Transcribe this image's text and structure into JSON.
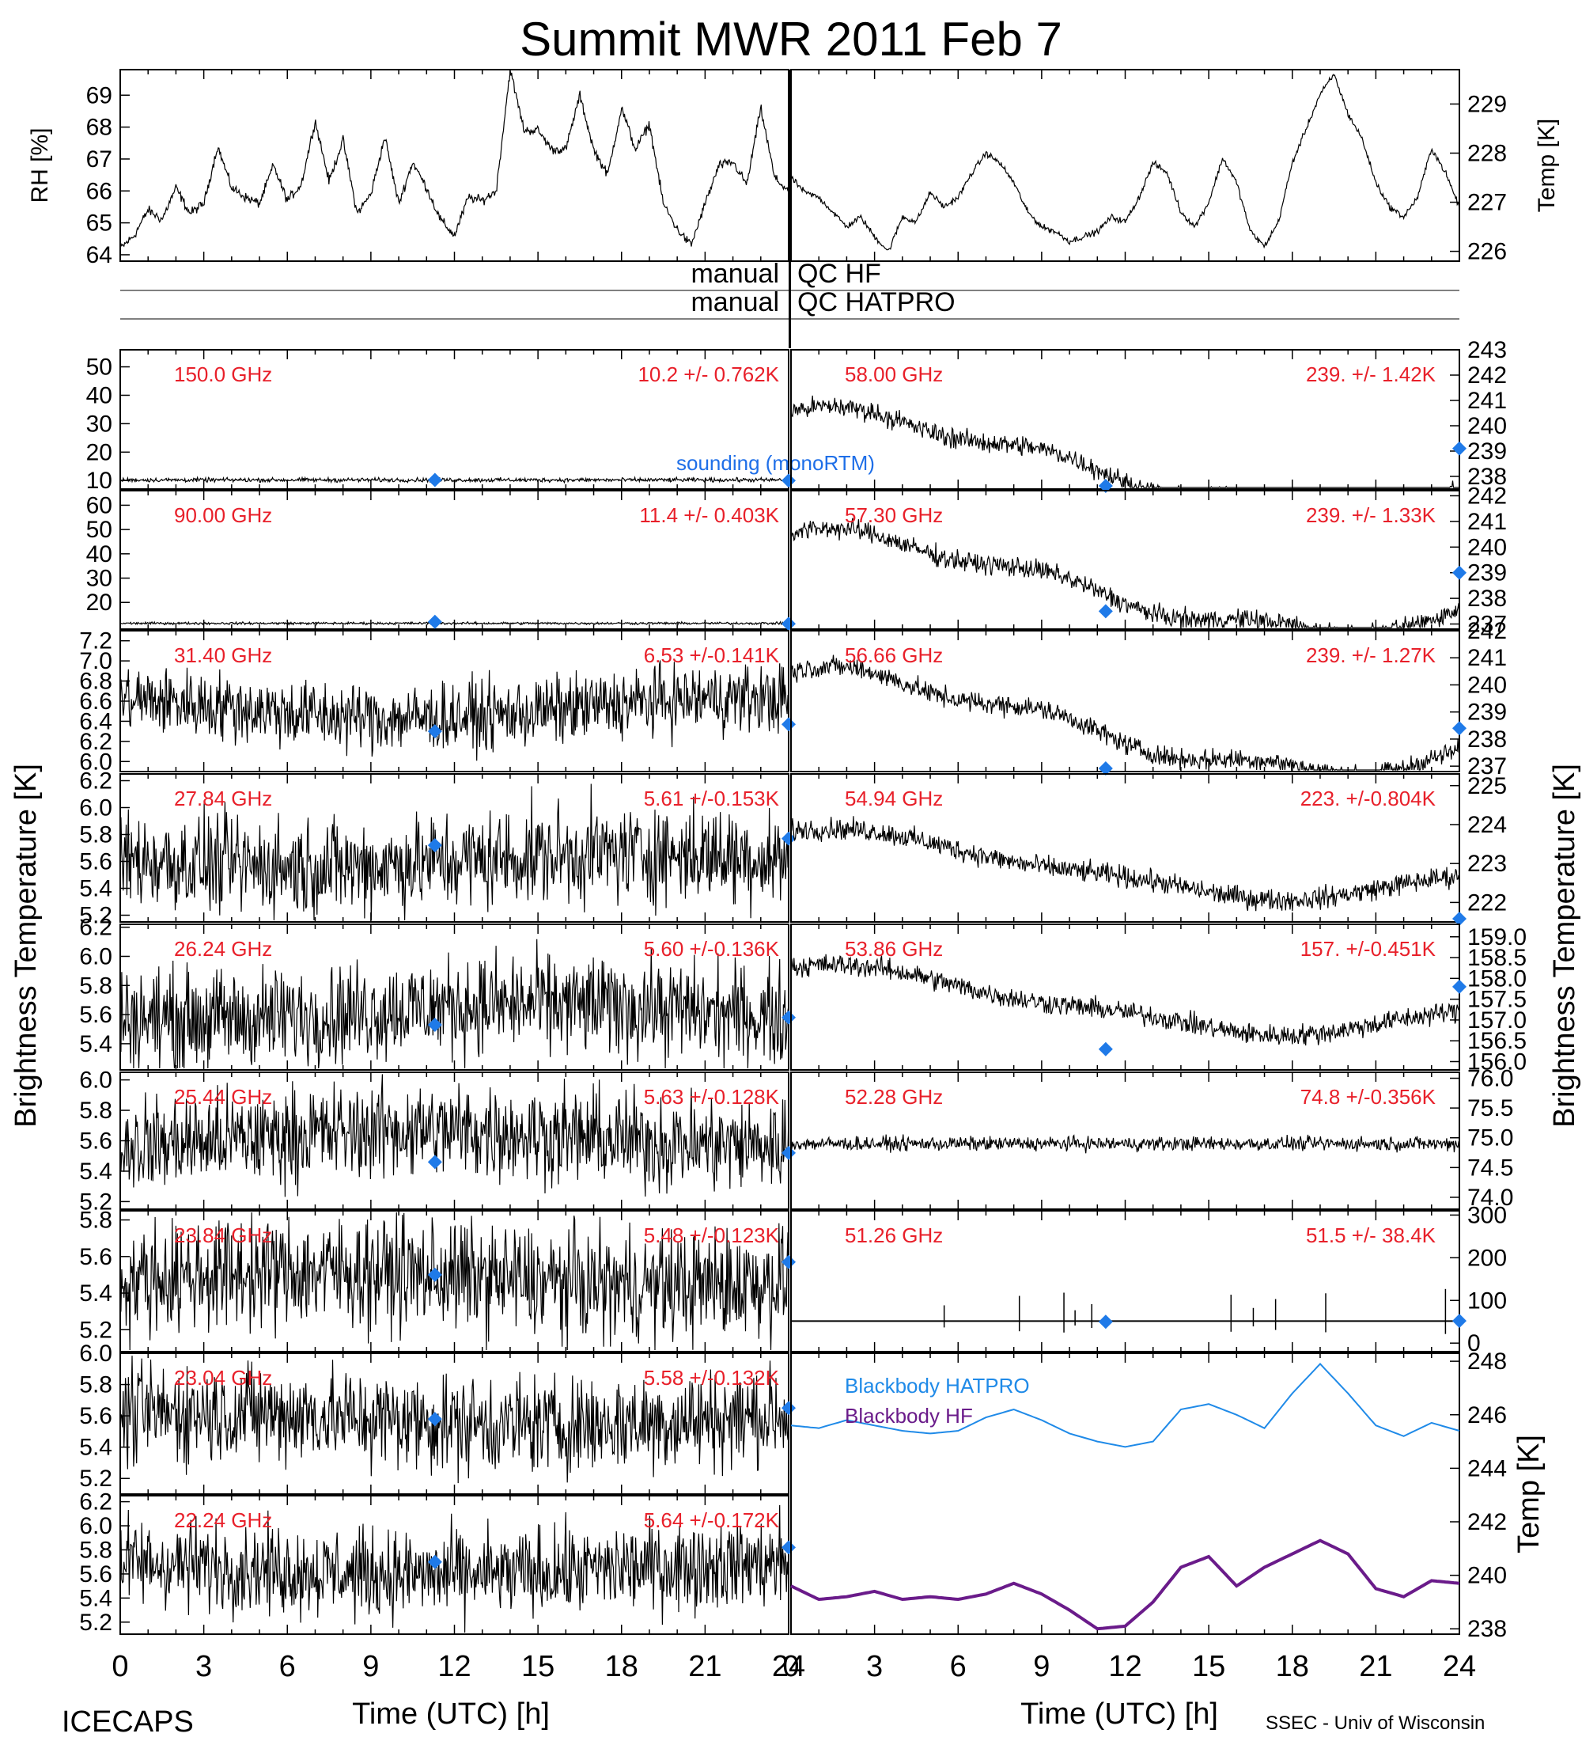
{
  "chart_data": {
    "type": "line",
    "title": "Summit MWR 2011 Feb  7",
    "x_ticks": [
      "0",
      "3",
      "6",
      "9",
      "12",
      "15",
      "18",
      "21",
      "24"
    ],
    "xlabel": "Time (UTC) [h]",
    "footer_left": "ICECAPS",
    "footer_right": "SSEC - Univ of Wisconsin",
    "qc_rows": [
      {
        "left": "manual",
        "right": "QC HF"
      },
      {
        "left": "manual",
        "right": "QC HATPRO"
      }
    ],
    "met": {
      "left": {
        "ylabel": "RH [%]",
        "ylim": [
          63.8,
          69.8
        ],
        "yticks": [
          64,
          65,
          66,
          67,
          68,
          69
        ],
        "x": [
          0,
          0.5,
          1,
          1.5,
          2,
          2.5,
          3,
          3.5,
          4,
          4.5,
          5,
          5.5,
          6,
          6.5,
          7,
          7.5,
          8,
          8.5,
          9,
          9.5,
          10,
          10.5,
          11,
          11.5,
          12,
          12.5,
          13,
          13.5,
          14,
          14.5,
          15,
          15.5,
          16,
          16.5,
          17,
          17.5,
          18,
          18.5,
          19,
          19.5,
          20,
          20.5,
          21,
          21.5,
          22,
          22.5,
          23,
          23.5,
          24
        ],
        "values": [
          64.2,
          64.6,
          65.4,
          65.1,
          66.1,
          65.3,
          65.6,
          67.4,
          66.1,
          65.8,
          65.6,
          66.8,
          65.7,
          66.2,
          68.2,
          66.3,
          67.6,
          65.3,
          65.9,
          67.7,
          65.6,
          66.9,
          66.1,
          65.1,
          64.6,
          65.8,
          65.7,
          66.0,
          69.8,
          67.9,
          67.9,
          67.3,
          67.3,
          69.0,
          67.3,
          66.5,
          68.6,
          67.3,
          68.1,
          65.6,
          64.8,
          64.3,
          65.6,
          66.8,
          66.9,
          66.2,
          68.6,
          66.4,
          66.0
        ]
      },
      "right": {
        "ylabel": "Temp [K]",
        "ylim": [
          225.8,
          229.7
        ],
        "yticks": [
          226,
          227,
          228,
          229
        ],
        "x": [
          0,
          0.5,
          1,
          1.5,
          2,
          2.5,
          3,
          3.5,
          4,
          4.5,
          5,
          5.5,
          6,
          6.5,
          7,
          7.5,
          8,
          8.5,
          9,
          9.5,
          10,
          10.5,
          11,
          11.5,
          12,
          12.5,
          13,
          13.5,
          14,
          14.5,
          15,
          15.5,
          16,
          16.5,
          17,
          17.5,
          18,
          18.5,
          19,
          19.5,
          20,
          20.5,
          21,
          21.5,
          22,
          22.5,
          23,
          23.5,
          24
        ],
        "values": [
          227.5,
          227.2,
          227.1,
          226.8,
          226.5,
          226.7,
          226.3,
          226.0,
          226.7,
          226.6,
          227.2,
          226.9,
          227.1,
          227.6,
          228.0,
          227.8,
          227.4,
          226.8,
          226.5,
          226.4,
          226.2,
          226.3,
          226.4,
          226.7,
          226.6,
          227.1,
          227.8,
          227.6,
          226.8,
          226.5,
          227.0,
          227.9,
          227.4,
          226.4,
          226.1,
          226.6,
          227.8,
          228.5,
          229.2,
          229.6,
          228.8,
          228.3,
          227.4,
          226.9,
          226.7,
          227.1,
          228.1,
          227.6,
          226.9
        ]
      }
    },
    "panels_left": [
      {
        "freq": "150.0 GHz",
        "stat": "10.2 +/- 0.762K",
        "ylim": [
          7,
          56
        ],
        "yticks": [
          10,
          20,
          30,
          40,
          50
        ],
        "base": 10.2,
        "noise": 0.6,
        "drift": 0,
        "sounding": [
          [
            11.3,
            10.2
          ],
          [
            24,
            10.0
          ]
        ],
        "note": "sounding (monoRTM)"
      },
      {
        "freq": "90.00 GHz",
        "stat": "11.4 +/- 0.403K",
        "ylim": [
          9,
          66
        ],
        "yticks": [
          20,
          30,
          40,
          50,
          60
        ],
        "base": 11.4,
        "noise": 0.4,
        "drift": 0,
        "sounding": [
          [
            11.3,
            12.0
          ],
          [
            24,
            11.2
          ]
        ]
      },
      {
        "freq": "31.40 GHz",
        "stat": "6.53 +/-0.141K",
        "ylim": [
          5.9,
          7.3
        ],
        "yticks": [
          6.0,
          6.2,
          6.4,
          6.6,
          6.8,
          7.0,
          7.2
        ],
        "tick_labels": [
          "6.0",
          "6.2",
          "6.4",
          "6.6",
          "6.8",
          "7.0",
          "7.2"
        ],
        "base": 6.53,
        "noise": 0.28,
        "drift": 0.1,
        "sounding": [
          [
            11.3,
            6.3
          ],
          [
            24,
            6.37
          ]
        ]
      },
      {
        "freq": "27.84 GHz",
        "stat": "5.61 +/-0.153K",
        "ylim": [
          5.15,
          6.25
        ],
        "yticks": [
          5.2,
          5.4,
          5.6,
          5.8,
          6.0,
          6.2
        ],
        "tick_labels": [
          "5.2",
          "5.4",
          "5.6",
          "5.8",
          "6.0",
          "6.2"
        ],
        "base": 5.61,
        "noise": 0.3,
        "drift": 0.05,
        "sounding": [
          [
            11.3,
            5.72
          ],
          [
            24,
            5.77
          ]
        ]
      },
      {
        "freq": "26.24 GHz",
        "stat": "5.60 +/-0.136K",
        "ylim": [
          5.22,
          6.22
        ],
        "yticks": [
          5.4,
          5.6,
          5.8,
          6.0,
          6.2
        ],
        "tick_labels": [
          "5.4",
          "5.6",
          "5.8",
          "6.0",
          "6.2"
        ],
        "base": 5.62,
        "noise": 0.28,
        "drift": 0.05,
        "sounding": [
          [
            11.3,
            5.53
          ],
          [
            24,
            5.58
          ]
        ]
      },
      {
        "freq": "25.44 GHz",
        "stat": "5.63 +/-0.128K",
        "ylim": [
          5.15,
          6.05
        ],
        "yticks": [
          5.2,
          5.4,
          5.6,
          5.8,
          6.0
        ],
        "tick_labels": [
          "5.2",
          "5.4",
          "5.6",
          "5.8",
          "6.0"
        ],
        "base": 5.62,
        "noise": 0.26,
        "drift": 0.05,
        "sounding": [
          [
            11.3,
            5.46
          ],
          [
            24,
            5.52
          ]
        ]
      },
      {
        "freq": "23.84 GHz",
        "stat": "5.48 +/-0.123K",
        "ylim": [
          5.08,
          5.85
        ],
        "yticks": [
          5.2,
          5.4,
          5.6,
          5.8
        ],
        "tick_labels": [
          "5.2",
          "5.4",
          "5.6",
          "5.8"
        ],
        "base": 5.48,
        "noise": 0.25,
        "drift": 0.04,
        "sounding": [
          [
            11.3,
            5.5
          ],
          [
            24,
            5.57
          ]
        ]
      },
      {
        "freq": "23.04 GHz",
        "stat": "5.58 +/-0.132K",
        "ylim": [
          5.1,
          6.0
        ],
        "yticks": [
          5.2,
          5.4,
          5.6,
          5.8,
          6.0
        ],
        "tick_labels": [
          "5.2",
          "5.4",
          "5.6",
          "5.8",
          "6.0"
        ],
        "base": 5.58,
        "noise": 0.26,
        "drift": 0.04,
        "sounding": [
          [
            11.3,
            5.58
          ],
          [
            24,
            5.65
          ]
        ]
      },
      {
        "freq": "22.24 GHz",
        "stat": "5.64 +/-0.172K",
        "ylim": [
          5.1,
          6.25
        ],
        "yticks": [
          5.2,
          5.4,
          5.6,
          5.8,
          6.0,
          6.2
        ],
        "tick_labels": [
          "5.2",
          "5.4",
          "5.6",
          "5.8",
          "6.0",
          "6.2"
        ],
        "base": 5.64,
        "noise": 0.3,
        "drift": 0.05,
        "sounding": [
          [
            11.3,
            5.7
          ],
          [
            24,
            5.82
          ]
        ]
      }
    ],
    "panels_right": [
      {
        "freq": "58.00 GHz",
        "stat": "239. +/- 1.42K",
        "ylim": [
          237.5,
          243.0
        ],
        "yticks": [
          238,
          239,
          240,
          241,
          242,
          243
        ],
        "base": 239.0,
        "noise": 0.5,
        "shape": "deep",
        "sounding": [
          [
            11.3,
            237.6
          ],
          [
            24,
            239.1
          ]
        ]
      },
      {
        "freq": "57.30 GHz",
        "stat": "239. +/- 1.33K",
        "ylim": [
          236.8,
          242.2
        ],
        "yticks": [
          237,
          238,
          239,
          240,
          241,
          242
        ],
        "base": 239.0,
        "noise": 0.5,
        "shape": "deep",
        "sounding": [
          [
            11.3,
            237.5
          ],
          [
            24,
            239.0
          ]
        ]
      },
      {
        "freq": "56.66 GHz",
        "stat": "239. +/- 1.27K",
        "ylim": [
          236.8,
          242.0
        ],
        "yticks": [
          237,
          238,
          239,
          240,
          241,
          242
        ],
        "base": 239.0,
        "noise": 0.5,
        "shape": "deep",
        "sounding": [
          [
            11.3,
            236.9
          ],
          [
            24,
            238.4
          ]
        ]
      },
      {
        "freq": "54.94 GHz",
        "stat": "223. +/-0.804K",
        "ylim": [
          221.5,
          225.3
        ],
        "yticks": [
          222,
          223,
          224,
          225
        ],
        "base": 223.0,
        "noise": 0.5,
        "shape": "soft",
        "sounding": [
          [
            24,
            221.5
          ]
        ]
      },
      {
        "freq": "53.86 GHz",
        "stat": "157. +/-0.451K",
        "ylim": [
          155.8,
          159.3
        ],
        "yticks": [
          156,
          156.5,
          157,
          157.5,
          158,
          158.5,
          159
        ],
        "tick_labels": [
          "156.0",
          "156.5",
          "157.0",
          "157.5",
          "158.0",
          "158.5",
          "159.0"
        ],
        "base": 157.5,
        "noise": 0.5,
        "shape": "soft",
        "sounding": [
          [
            11.3,
            156.3
          ],
          [
            24,
            157.8
          ]
        ]
      },
      {
        "freq": "52.28 GHz",
        "stat": "74.8 +/-0.356K",
        "ylim": [
          73.8,
          76.1
        ],
        "yticks": [
          74,
          74.5,
          75,
          75.5,
          76
        ],
        "tick_labels": [
          "74.0",
          "74.5",
          "75.0",
          "75.5",
          "76.0"
        ],
        "base": 74.9,
        "noise": 0.35,
        "shape": "flat"
      },
      {
        "freq": "51.26 GHz",
        "stat": "51.5 +/- 38.4K",
        "ylim": [
          -20,
          310
        ],
        "yticks": [
          0,
          100,
          200,
          300
        ],
        "base": 51.5,
        "noise": 0,
        "shape": "spiky",
        "sounding": [
          [
            11.3,
            50
          ],
          [
            24,
            52
          ]
        ]
      }
    ],
    "blackbody": {
      "ylabel": "Temp [K]",
      "ylim": [
        237.8,
        248.3
      ],
      "yticks": [
        238,
        240,
        242,
        244,
        246,
        248
      ],
      "series": [
        {
          "name": "Blackbody HATPRO",
          "color": "#1f8ae8",
          "x": [
            0,
            1,
            2,
            3,
            4,
            5,
            6,
            7,
            8,
            9,
            10,
            11,
            12,
            13,
            14,
            15,
            16,
            17,
            18,
            19,
            20,
            21,
            22,
            23,
            24
          ],
          "values": [
            245.6,
            245.5,
            245.8,
            245.6,
            245.4,
            245.3,
            245.4,
            245.9,
            246.2,
            245.8,
            245.3,
            245.0,
            244.8,
            245.0,
            246.2,
            246.4,
            246.0,
            245.5,
            246.8,
            247.9,
            246.8,
            245.6,
            245.2,
            245.7,
            245.4
          ]
        },
        {
          "name": "Blackbody HF",
          "color": "#6a1b8a",
          "x": [
            0,
            1,
            2,
            3,
            4,
            5,
            6,
            7,
            8,
            9,
            10,
            11,
            12,
            13,
            14,
            15,
            16,
            17,
            18,
            19,
            20,
            21,
            22,
            23,
            24
          ],
          "values": [
            239.6,
            239.1,
            239.2,
            239.4,
            239.1,
            239.2,
            239.1,
            239.3,
            239.7,
            239.3,
            238.7,
            238.0,
            238.1,
            239.0,
            240.3,
            240.7,
            239.6,
            240.3,
            240.8,
            241.3,
            240.8,
            239.5,
            239.2,
            239.8,
            239.7
          ]
        }
      ]
    },
    "ylabel_left": "Brightness Temperature [K]",
    "ylabel_right": "Brightness Temperature [K]"
  }
}
